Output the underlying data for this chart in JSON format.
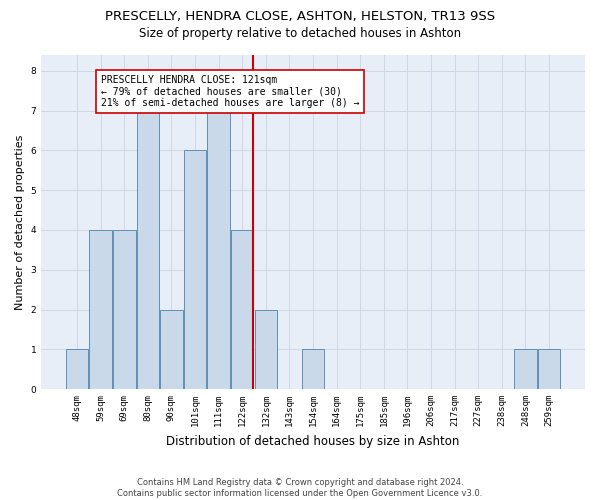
{
  "title": "PRESCELLY, HENDRA CLOSE, ASHTON, HELSTON, TR13 9SS",
  "subtitle": "Size of property relative to detached houses in Ashton",
  "xlabel": "Distribution of detached houses by size in Ashton",
  "ylabel": "Number of detached properties",
  "categories": [
    "48sqm",
    "59sqm",
    "69sqm",
    "80sqm",
    "90sqm",
    "101sqm",
    "111sqm",
    "122sqm",
    "132sqm",
    "143sqm",
    "154sqm",
    "164sqm",
    "175sqm",
    "185sqm",
    "196sqm",
    "206sqm",
    "217sqm",
    "227sqm",
    "238sqm",
    "248sqm",
    "259sqm"
  ],
  "values": [
    1,
    4,
    4,
    7,
    2,
    6,
    7,
    4,
    2,
    0,
    1,
    0,
    0,
    0,
    0,
    0,
    0,
    0,
    0,
    1,
    1
  ],
  "bar_color": "#c9d9ea",
  "bar_edge_color": "#6090b8",
  "highlight_index": 7,
  "highlight_color": "#cc0000",
  "annotation_text": "PRESCELLY HENDRA CLOSE: 121sqm\n← 79% of detached houses are smaller (30)\n21% of semi-detached houses are larger (8) →",
  "annotation_box_color": "#cc0000",
  "ylim": [
    0,
    8.4
  ],
  "yticks": [
    0,
    1,
    2,
    3,
    4,
    5,
    6,
    7,
    8
  ],
  "grid_color": "#d0d8e8",
  "bg_color": "#e8eef8",
  "footer": "Contains HM Land Registry data © Crown copyright and database right 2024.\nContains public sector information licensed under the Open Government Licence v3.0.",
  "title_fontsize": 9.5,
  "subtitle_fontsize": 8.5,
  "xlabel_fontsize": 8.5,
  "ylabel_fontsize": 8,
  "tick_fontsize": 6.5,
  "annotation_fontsize": 7,
  "footer_fontsize": 6
}
